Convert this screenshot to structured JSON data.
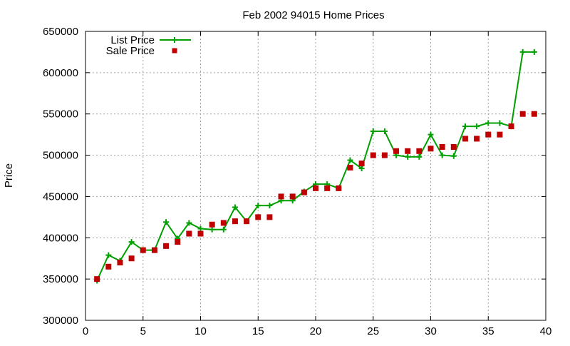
{
  "chart_data": {
    "type": "line",
    "title": "Feb 2002 94015 Home Prices",
    "xlabel": "",
    "ylabel": "Price",
    "xlim": [
      0,
      40
    ],
    "ylim": [
      300000,
      650000
    ],
    "xticks": [
      0,
      5,
      10,
      15,
      20,
      25,
      30,
      35,
      40
    ],
    "yticks": [
      300000,
      350000,
      400000,
      450000,
      500000,
      550000,
      600000,
      650000
    ],
    "grid": true,
    "legend_position": "top-left",
    "series": [
      {
        "name": "List Price",
        "style": "line-plus",
        "color": "#00a000",
        "x": [
          1,
          2,
          3,
          4,
          5,
          6,
          7,
          8,
          9,
          10,
          11,
          12,
          13,
          14,
          15,
          16,
          17,
          18,
          19,
          20,
          21,
          22,
          23,
          24,
          25,
          26,
          27,
          28,
          29,
          30,
          31,
          32,
          33,
          34,
          35,
          36,
          37,
          38,
          39
        ],
        "y": [
          348000,
          379000,
          372000,
          395000,
          385000,
          385000,
          419000,
          399000,
          418000,
          411000,
          410000,
          410000,
          437000,
          420000,
          439000,
          439000,
          445000,
          445000,
          456000,
          465000,
          465000,
          460000,
          494000,
          484000,
          529000,
          529000,
          500000,
          498000,
          498000,
          525000,
          500000,
          499000,
          535000,
          535000,
          539000,
          539000,
          535000,
          625000,
          625000
        ]
      },
      {
        "name": "Sale Price",
        "style": "square-points",
        "color": "#c00000",
        "x": [
          1,
          2,
          3,
          4,
          5,
          6,
          7,
          8,
          9,
          10,
          11,
          12,
          13,
          14,
          15,
          16,
          17,
          18,
          19,
          20,
          21,
          22,
          23,
          24,
          25,
          26,
          27,
          28,
          29,
          30,
          31,
          32,
          33,
          34,
          35,
          36,
          37,
          38,
          39
        ],
        "y": [
          350000,
          365000,
          370000,
          375000,
          385000,
          385000,
          390000,
          395000,
          405000,
          405000,
          416000,
          418000,
          420000,
          420000,
          425000,
          425000,
          450000,
          450000,
          455000,
          460000,
          460000,
          460000,
          485000,
          490000,
          500000,
          500000,
          505000,
          505000,
          505000,
          508000,
          510000,
          510000,
          520000,
          520000,
          525000,
          525000,
          535000,
          550000,
          550000
        ]
      }
    ]
  }
}
